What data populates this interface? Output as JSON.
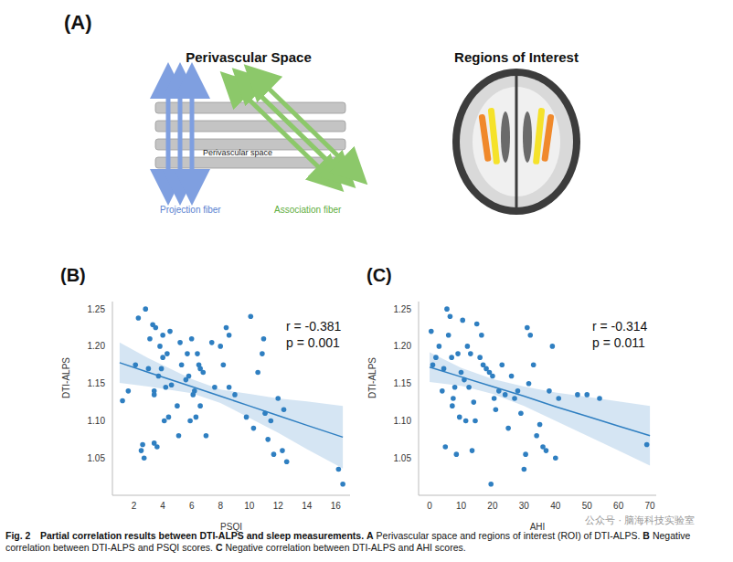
{
  "panel_a": {
    "label": "(A)",
    "left": {
      "title": "Perivascular Space",
      "center_label": "Perivascular space",
      "projection_label": "Projection fiber",
      "association_label": "Association fiber"
    },
    "right": {
      "title": "Regions of Interest"
    }
  },
  "chart_data": [
    {
      "label": "(B)",
      "type": "scatter",
      "x_label": "PSQI",
      "y_label": "DTI-ALPS",
      "xlim": [
        0.5,
        17
      ],
      "ylim": [
        1.0,
        1.26
      ],
      "xticks": [
        2,
        4,
        6,
        8,
        10,
        12,
        14,
        16
      ],
      "yticks": [
        1.05,
        {
          "value": 1.1,
          "label": "1.10"
        },
        1.15,
        {
          "value": 1.2,
          "label": "1.20"
        },
        1.25
      ],
      "grid": false,
      "color": "#2f7fc1",
      "x": [
        1.2,
        1.6,
        2.1,
        2.3,
        2.5,
        2.6,
        2.7,
        2.8,
        3.0,
        3.1,
        3.3,
        3.5,
        3.4,
        3.4,
        3.4,
        3.6,
        3.7,
        3.8,
        3.9,
        4.0,
        4.0,
        4.1,
        4.2,
        4.3,
        4.4,
        4.5,
        4.6,
        5.0,
        5.1,
        5.2,
        5.3,
        5.6,
        5.7,
        5.8,
        5.9,
        6.0,
        6.1,
        6.2,
        6.3,
        6.4,
        6.5,
        6.6,
        6.6,
        6.8,
        7.0,
        7.4,
        7.6,
        8.0,
        8.2,
        8.4,
        8.6,
        8.6,
        9.0,
        9.8,
        10.1,
        10.3,
        10.6,
        10.9,
        11.0,
        11.1,
        11.3,
        11.5,
        11.7,
        12.0,
        12.3,
        12.4,
        12.6,
        16.2,
        16.5
      ],
      "values": [
        1.127,
        1.14,
        1.175,
        1.238,
        1.06,
        1.068,
        1.05,
        1.25,
        1.17,
        1.21,
        1.229,
        1.225,
        1.14,
        1.135,
        1.07,
        1.065,
        1.16,
        1.2,
        1.17,
        1.215,
        1.185,
        1.1,
        1.145,
        1.19,
        1.105,
        1.22,
        1.148,
        1.12,
        1.08,
        1.205,
        1.175,
        1.155,
        1.19,
        1.16,
        1.1,
        1.21,
        1.135,
        1.14,
        1.105,
        1.19,
        1.175,
        1.17,
        1.12,
        1.165,
        1.08,
        1.205,
        1.145,
        1.2,
        1.175,
        1.225,
        1.215,
        1.145,
        1.135,
        1.105,
        1.24,
        1.09,
        1.165,
        1.19,
        1.21,
        1.11,
        1.075,
        1.1,
        1.055,
        1.13,
        1.06,
        1.115,
        1.045,
        1.035,
        1.015
      ],
      "fit": {
        "x": [
          1,
          3,
          6,
          8,
          10,
          12,
          14,
          16.5
        ],
        "values": [
          1.178,
          1.165,
          1.146,
          1.133,
          1.12,
          1.107,
          1.094,
          1.078
        ],
        "ci_lower": [
          1.151,
          1.146,
          1.137,
          1.124,
          1.104,
          1.084,
          1.062,
          1.036
        ],
        "ci_upper": [
          1.205,
          1.184,
          1.156,
          1.142,
          1.136,
          1.13,
          1.126,
          1.12
        ]
      },
      "annotations": [
        "r = -0.381",
        "p = 0.001"
      ]
    },
    {
      "label": "(C)",
      "type": "scatter",
      "x_label": "AHI",
      "y_label": "DTI-ALPS",
      "xlim": [
        -3.5,
        72
      ],
      "ylim": [
        1.0,
        1.26
      ],
      "xticks": [
        0,
        10,
        20,
        30,
        40,
        50,
        60,
        70
      ],
      "yticks": [
        1.05,
        {
          "value": 1.1,
          "label": "1.10"
        },
        1.15,
        {
          "value": 1.2,
          "label": "1.20"
        },
        1.25
      ],
      "grid": false,
      "color": "#2f7fc1",
      "x": [
        0.5,
        1,
        2,
        3,
        4,
        4.5,
        5,
        5.5,
        6,
        6.5,
        7,
        7.2,
        7.5,
        8,
        8.5,
        9,
        9.5,
        10,
        10.5,
        11,
        11.5,
        12,
        12.5,
        13,
        13.5,
        14,
        14.5,
        15,
        16,
        16.5,
        17,
        18,
        19,
        19.5,
        20,
        20.5,
        21,
        22,
        23,
        24,
        25,
        26,
        27,
        28,
        29,
        30,
        30.5,
        31,
        31.5,
        32,
        33,
        34,
        35,
        36,
        37,
        38,
        39,
        40,
        41,
        47,
        50,
        54,
        69
      ],
      "values": [
        1.22,
        1.175,
        1.185,
        1.2,
        1.14,
        1.17,
        1.065,
        1.25,
        1.215,
        1.24,
        1.185,
        1.12,
        1.13,
        1.145,
        1.055,
        1.19,
        1.105,
        1.165,
        1.235,
        1.155,
        1.1,
        1.2,
        1.145,
        1.19,
        1.06,
        1.125,
        1.1,
        1.23,
        1.185,
        1.215,
        1.175,
        1.17,
        1.165,
        1.015,
        1.16,
        1.13,
        1.115,
        1.14,
        1.175,
        1.135,
        1.09,
        1.16,
        1.13,
        1.14,
        1.11,
        1.035,
        1.055,
        1.225,
        1.15,
        1.215,
        1.175,
        1.08,
        1.095,
        1.065,
        1.06,
        1.14,
        1.2,
        1.05,
        1.13,
        1.135,
        1.135,
        1.13,
        1.068
      ],
      "fit": {
        "x": [
          0,
          10,
          20,
          30,
          40,
          50,
          60,
          70
        ],
        "values": [
          1.172,
          1.159,
          1.146,
          1.133,
          1.119,
          1.106,
          1.093,
          1.08
        ],
        "ci_lower": [
          1.152,
          1.147,
          1.136,
          1.12,
          1.1,
          1.08,
          1.06,
          1.04
        ],
        "ci_upper": [
          1.192,
          1.171,
          1.156,
          1.146,
          1.138,
          1.132,
          1.126,
          1.12
        ]
      },
      "annotations": [
        "r = -0.314",
        "p = 0.011"
      ]
    }
  ],
  "caption": {
    "label": "Fig. 2",
    "title": "Partial correlation results between DTI-ALPS and sleep measurements.",
    "parts": [
      {
        "letter": "A",
        "text": "Perivascular space and regions of interest (ROI) of DTI-ALPS."
      },
      {
        "letter": "B",
        "text": "Negative correlation between DTI-ALPS and PSQI scores."
      },
      {
        "letter": "C",
        "text": "Negative correlation between DTI-ALPS and AHI scores."
      }
    ]
  },
  "watermark": "公众号 · 脑海科技实验室"
}
